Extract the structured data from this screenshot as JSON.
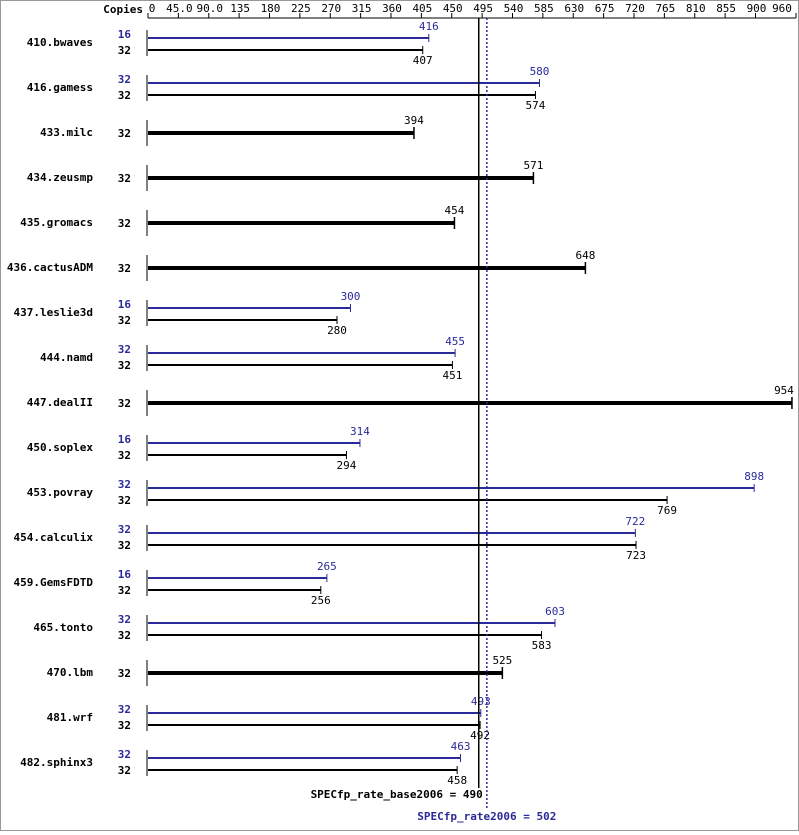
{
  "chart_data": {
    "type": "bar",
    "orientation": "horizontal",
    "copies_header": "Copies",
    "xlim": [
      0,
      960
    ],
    "xticks": [
      0,
      {
        "value": 45,
        "label": "45.0"
      },
      {
        "value": 90,
        "label": "90.0"
      },
      135,
      180,
      225,
      270,
      315,
      360,
      405,
      450,
      495,
      540,
      585,
      630,
      675,
      720,
      765,
      810,
      855,
      900,
      960
    ],
    "peak_color": "#2a2a9a",
    "base_color": "#000000",
    "rows": [
      {
        "name": "410.bwaves",
        "peak": {
          "copies": 16,
          "value": 416
        },
        "base": {
          "copies": 32,
          "value": 407
        }
      },
      {
        "name": "416.gamess",
        "peak": {
          "copies": 32,
          "value": 580
        },
        "base": {
          "copies": 32,
          "value": 574
        }
      },
      {
        "name": "433.milc",
        "base": {
          "copies": 32,
          "value": 394
        }
      },
      {
        "name": "434.zeusmp",
        "base": {
          "copies": 32,
          "value": 571
        }
      },
      {
        "name": "435.gromacs",
        "base": {
          "copies": 32,
          "value": 454
        }
      },
      {
        "name": "436.cactusADM",
        "base": {
          "copies": 32,
          "value": 648
        }
      },
      {
        "name": "437.leslie3d",
        "peak": {
          "copies": 16,
          "value": 300
        },
        "base": {
          "copies": 32,
          "value": 280
        }
      },
      {
        "name": "444.namd",
        "peak": {
          "copies": 32,
          "value": 455
        },
        "base": {
          "copies": 32,
          "value": 451
        }
      },
      {
        "name": "447.dealII",
        "base": {
          "copies": 32,
          "value": 954
        }
      },
      {
        "name": "450.soplex",
        "peak": {
          "copies": 16,
          "value": 314
        },
        "base": {
          "copies": 32,
          "value": 294
        }
      },
      {
        "name": "453.povray",
        "peak": {
          "copies": 32,
          "value": 898
        },
        "base": {
          "copies": 32,
          "value": 769
        }
      },
      {
        "name": "454.calculix",
        "peak": {
          "copies": 32,
          "value": 722
        },
        "base": {
          "copies": 32,
          "value": 723
        }
      },
      {
        "name": "459.GemsFDTD",
        "peak": {
          "copies": 16,
          "value": 265
        },
        "base": {
          "copies": 32,
          "value": 256
        }
      },
      {
        "name": "465.tonto",
        "peak": {
          "copies": 32,
          "value": 603
        },
        "base": {
          "copies": 32,
          "value": 583
        }
      },
      {
        "name": "470.lbm",
        "base": {
          "copies": 32,
          "value": 525
        }
      },
      {
        "name": "481.wrf",
        "peak": {
          "copies": 32,
          "value": 493
        },
        "base": {
          "copies": 32,
          "value": 492
        }
      },
      {
        "name": "482.sphinx3",
        "peak": {
          "copies": 32,
          "value": 463
        },
        "base": {
          "copies": 32,
          "value": 458
        }
      }
    ],
    "base_summary": {
      "label": "SPECfp_rate_base2006 = 490",
      "value": 490
    },
    "peak_summary": {
      "label": "SPECfp_rate2006 = 502",
      "value": 502
    }
  }
}
